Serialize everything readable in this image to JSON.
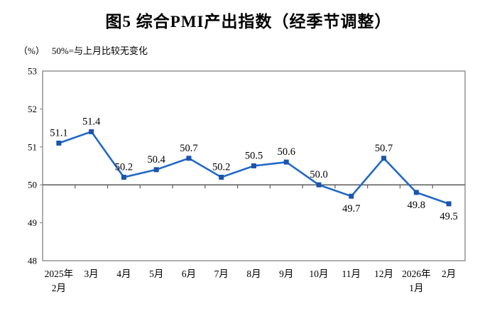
{
  "title": "图5 综合PMI产出指数（经季节调整）",
  "axis_note": {
    "unit": "（%）",
    "note": "50%=与上月比较无变化"
  },
  "chart_data": {
    "type": "line",
    "title": "图5 综合PMI产出指数（经季节调整）",
    "ylabel": "%",
    "categories": [
      [
        "2025年",
        "2月"
      ],
      [
        "3月"
      ],
      [
        "4月"
      ],
      [
        "5月"
      ],
      [
        "6月"
      ],
      [
        "7月"
      ],
      [
        "8月"
      ],
      [
        "9月"
      ],
      [
        "10月"
      ],
      [
        "11月"
      ],
      [
        "12月"
      ],
      [
        "2026年",
        "1月"
      ],
      [
        "2月"
      ]
    ],
    "series": [
      {
        "name": "综合PMI产出指数",
        "values": [
          51.1,
          51.4,
          50.2,
          50.4,
          50.7,
          50.2,
          50.5,
          50.6,
          50.0,
          49.7,
          50.7,
          49.8,
          49.5
        ]
      }
    ],
    "ylim": [
      48,
      53
    ],
    "yticks": [
      48,
      49,
      50,
      51,
      52,
      53
    ],
    "baseline_value": 50,
    "grid": "baseline-only",
    "legend": "none",
    "data_labels": "on",
    "colors": {
      "line": "#2268c6",
      "marker": "#1b54ad",
      "axis": "#8c8c8c",
      "baseline": "#595959",
      "text": "#000000"
    }
  }
}
